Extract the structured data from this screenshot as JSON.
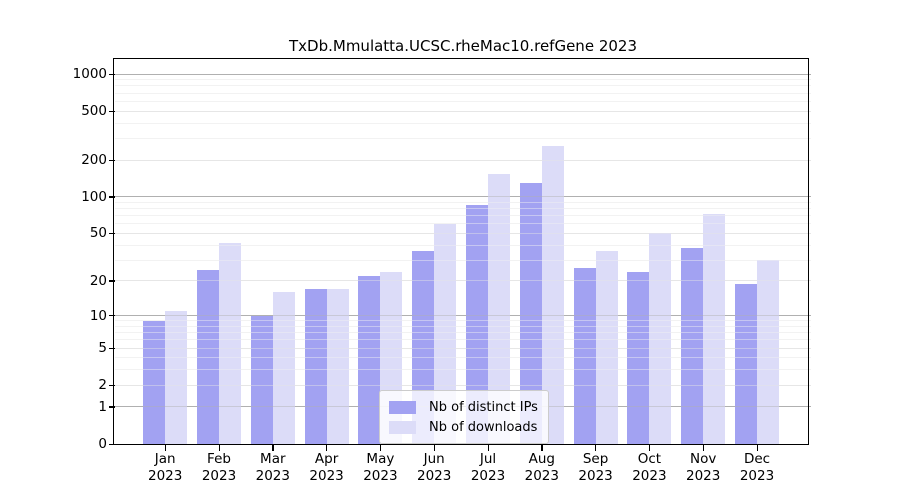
{
  "title": "TxDb.Mmulatta.UCSC.rheMac10.refGene 2023",
  "x_axis": {
    "months": [
      "Jan",
      "Feb",
      "Mar",
      "Apr",
      "May",
      "Jun",
      "Jul",
      "Aug",
      "Sep",
      "Oct",
      "Nov",
      "Dec"
    ],
    "year": "2023"
  },
  "y_axis": {
    "tick_labels": [
      "0",
      "1",
      "2",
      "5",
      "10",
      "20",
      "50",
      "100",
      "200",
      "500",
      "1000"
    ]
  },
  "legend": {
    "items": [
      {
        "key": "distinct-ips",
        "label": "Nb of distinct IPs",
        "color": "#a2a2f2"
      },
      {
        "key": "downloads",
        "label": "Nb of downloads",
        "color": "#dcdcf8"
      }
    ]
  },
  "colors": {
    "bar_ips": "#a2a2f2",
    "bar_downloads": "#dcdcf8",
    "grid_decade": "#b0b0b0",
    "grid_labeled": "#e6e6e6",
    "grid_minor": "#f2f2f2",
    "spine": "#000000"
  },
  "chart_data": {
    "type": "bar",
    "title": "TxDb.Mmulatta.UCSC.rheMac10.refGene 2023",
    "categories": [
      "Jan 2023",
      "Feb 2023",
      "Mar 2023",
      "Apr 2023",
      "May 2023",
      "Jun 2023",
      "Jul 2023",
      "Aug 2023",
      "Sep 2023",
      "Oct 2023",
      "Nov 2023",
      "Dec 2023"
    ],
    "series": [
      {
        "name": "Nb of distinct IPs",
        "color": "#a2a2f2",
        "values": [
          9,
          25,
          10,
          17,
          22,
          36,
          86,
          130,
          26,
          24,
          38,
          19
        ]
      },
      {
        "name": "Nb of downloads",
        "color": "#dcdcf8",
        "values": [
          11,
          42,
          16,
          17,
          24,
          60,
          155,
          260,
          36,
          50,
          72,
          30
        ]
      }
    ],
    "y_scale": "log10(1+x)",
    "y_ticks": [
      0,
      1,
      2,
      5,
      10,
      20,
      50,
      100,
      200,
      500,
      1000
    ],
    "y_minor_ticks": [
      3,
      4,
      6,
      7,
      8,
      9,
      30,
      40,
      60,
      70,
      80,
      90,
      300,
      400,
      600,
      700,
      800,
      900
    ],
    "ylim": [
      0,
      1300
    ],
    "grid": "horizontal",
    "legend_position": "lower center"
  }
}
